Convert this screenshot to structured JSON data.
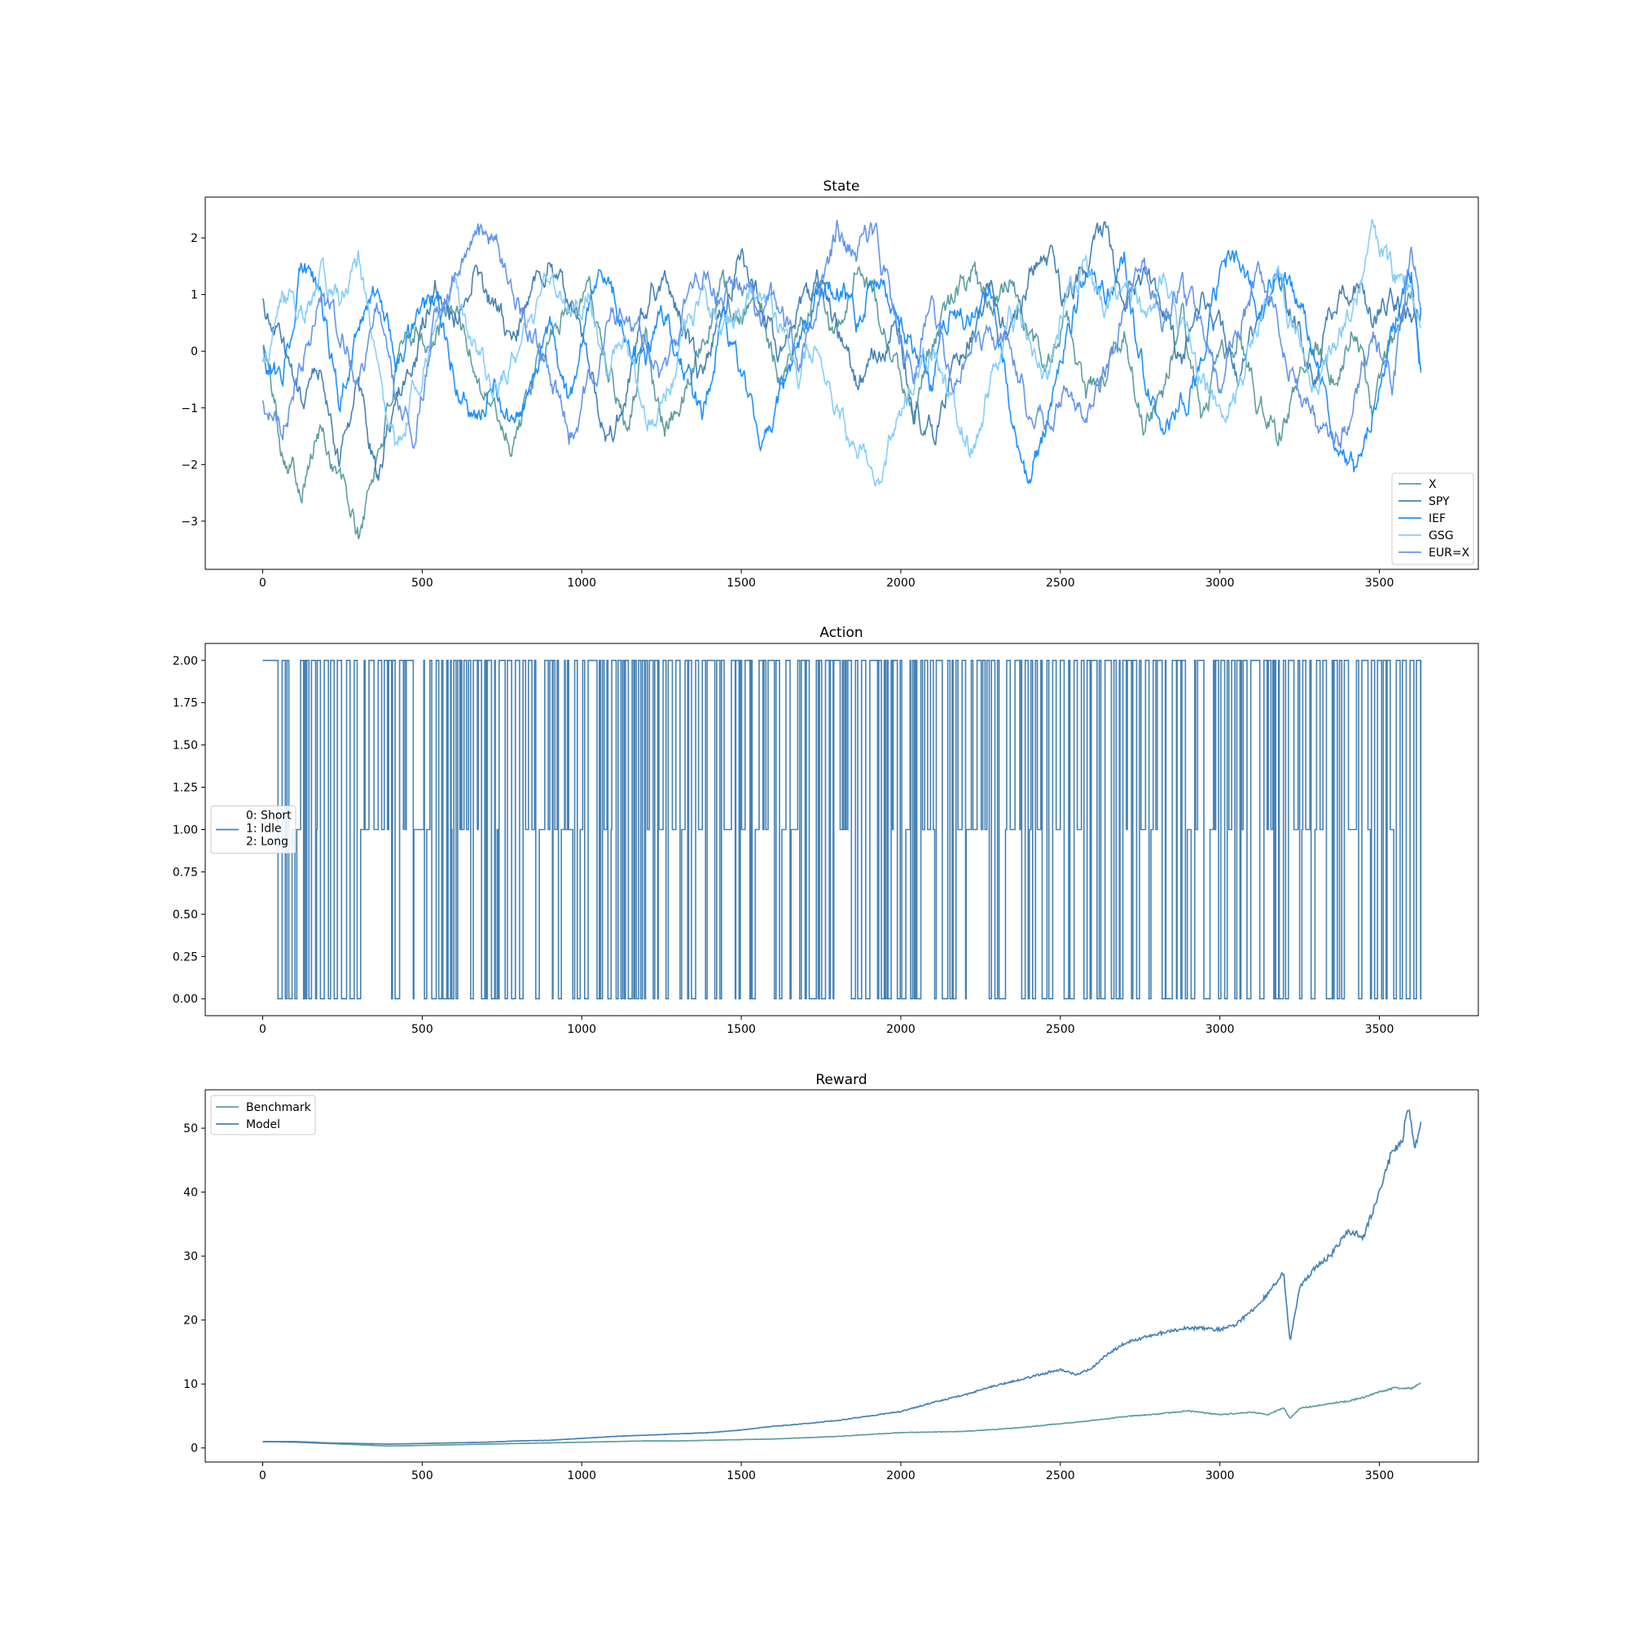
{
  "chart_data": [
    {
      "type": "line",
      "title": "State",
      "xlabel": "",
      "ylabel": "",
      "xlim": [
        -180,
        3810
      ],
      "ylim": [
        -3.85,
        2.72
      ],
      "xticks": [
        0,
        500,
        1000,
        1500,
        2000,
        2500,
        3000,
        3500
      ],
      "yticks": [
        2,
        1,
        0,
        -1,
        -2,
        -3
      ],
      "legend_position": "lower-right",
      "grid": false,
      "x_range": [
        0,
        3630
      ],
      "series": [
        {
          "name": "X",
          "color": "#5F9EA0",
          "x": [
            0,
            60,
            120,
            180,
            240,
            300,
            360,
            420,
            480,
            540,
            600,
            660,
            720,
            780,
            840,
            900,
            960,
            1020,
            1080,
            1140,
            1200,
            1260,
            1320,
            1380,
            1440,
            1500,
            1560,
            1620,
            1680,
            1740,
            1800,
            1860,
            1920,
            1980,
            2040,
            2100,
            2160,
            2220,
            2280,
            2340,
            2400,
            2460,
            2520,
            2580,
            2640,
            2700,
            2760,
            2820,
            2880,
            2940,
            3000,
            3060,
            3120,
            3180,
            3240,
            3300,
            3360,
            3420,
            3480,
            3540,
            3600,
            3630
          ],
          "y": [
            0.2,
            -1.6,
            -2.3,
            -1.4,
            -2.2,
            -3.3,
            -1.8,
            -0.4,
            0.5,
            0.1,
            0.8,
            -0.2,
            -1.0,
            -1.6,
            -0.7,
            0.2,
            0.9,
            1.2,
            -0.1,
            -1.3,
            0.3,
            -1.4,
            -0.9,
            0.4,
            1.2,
            0.6,
            1.0,
            -0.4,
            0.2,
            1.0,
            0.4,
            1.3,
            0.8,
            -0.2,
            -1.1,
            0.2,
            0.9,
            1.4,
            0.6,
            1.3,
            0.2,
            -0.3,
            0.8,
            -0.9,
            -0.4,
            0.5,
            -1.4,
            -0.8,
            0.6,
            -1.2,
            -0.3,
            0.4,
            -0.9,
            -1.5,
            -0.6,
            0.2,
            -0.4,
            0.5,
            -1.1,
            0.1,
            0.9,
            -0.5
          ]
        },
        {
          "name": "SPY",
          "color": "#4682B4",
          "x": [
            0,
            60,
            120,
            180,
            240,
            300,
            360,
            420,
            480,
            540,
            600,
            660,
            720,
            780,
            840,
            900,
            960,
            1020,
            1080,
            1140,
            1200,
            1260,
            1320,
            1380,
            1440,
            1500,
            1560,
            1620,
            1680,
            1740,
            1800,
            1860,
            1920,
            1980,
            2040,
            2100,
            2160,
            2220,
            2280,
            2340,
            2400,
            2460,
            2520,
            2580,
            2640,
            2700,
            2760,
            2820,
            2880,
            2940,
            3000,
            3060,
            3120,
            3180,
            3240,
            3300,
            3360,
            3420,
            3480,
            3540,
            3600,
            3630
          ],
          "y": [
            0.8,
            0.2,
            -0.9,
            -0.3,
            -1.9,
            -0.8,
            -2.2,
            -0.9,
            -0.1,
            1.2,
            0.6,
            1.5,
            0.8,
            0.2,
            0.9,
            1.6,
            0.7,
            -0.4,
            -1.6,
            -0.7,
            0.9,
            1.4,
            0.3,
            -0.6,
            0.8,
            1.7,
            1.0,
            -0.2,
            0.7,
            1.2,
            0.3,
            -0.5,
            -0.1,
            0.6,
            -0.8,
            -1.5,
            -0.4,
            0.3,
            1.1,
            0.5,
            1.3,
            1.7,
            0.8,
            1.4,
            1.9,
            0.9,
            1.3,
            0.6,
            -0.2,
            0.9,
            0.3,
            -0.6,
            0.5,
            1.2,
            0.4,
            -0.4,
            0.9,
            1.3,
            0.5,
            1.0,
            0.3,
            0.8
          ]
        },
        {
          "name": "IEF",
          "color": "#1E90FF",
          "x": [
            0,
            60,
            120,
            180,
            240,
            300,
            360,
            420,
            480,
            540,
            600,
            660,
            720,
            780,
            840,
            900,
            960,
            1020,
            1080,
            1140,
            1200,
            1260,
            1320,
            1380,
            1440,
            1500,
            1560,
            1620,
            1680,
            1740,
            1800,
            1860,
            1920,
            1980,
            2040,
            2100,
            2160,
            2220,
            2280,
            2340,
            2400,
            2460,
            2520,
            2580,
            2640,
            2700,
            2760,
            2820,
            2880,
            2940,
            3000,
            3060,
            3120,
            3180,
            3240,
            3300,
            3360,
            3420,
            3480,
            3540,
            3600,
            3630
          ],
          "y": [
            0.0,
            -0.6,
            1.6,
            1.0,
            -0.8,
            0.4,
            1.3,
            -0.2,
            0.5,
            0.9,
            -0.4,
            -1.2,
            -0.5,
            -1.3,
            -0.6,
            0.2,
            -1.1,
            0.6,
            1.5,
            0.3,
            -0.2,
            0.7,
            -0.3,
            -1.2,
            0.6,
            -0.4,
            -1.9,
            -0.8,
            0.1,
            0.9,
            1.4,
            0.5,
            1.3,
            0.8,
            0.1,
            -0.6,
            0.9,
            0.4,
            1.2,
            -0.8,
            -2.3,
            -1.2,
            0.4,
            1.3,
            0.9,
            1.6,
            -0.3,
            -1.6,
            -1.0,
            -0.2,
            1.3,
            1.7,
            0.4,
            1.6,
            1.1,
            -0.2,
            -1.4,
            -2.1,
            -0.9,
            0.4,
            1.3,
            -0.5
          ]
        },
        {
          "name": "GSG",
          "color": "#87CEFA",
          "x": [
            0,
            60,
            120,
            180,
            240,
            300,
            360,
            420,
            480,
            540,
            600,
            660,
            720,
            780,
            840,
            900,
            960,
            1020,
            1080,
            1140,
            1200,
            1260,
            1320,
            1380,
            1440,
            1500,
            1560,
            1620,
            1680,
            1740,
            1800,
            1860,
            1920,
            1980,
            2040,
            2100,
            2160,
            2220,
            2280,
            2340,
            2400,
            2460,
            2520,
            2580,
            2640,
            2700,
            2760,
            2820,
            2880,
            2940,
            3000,
            3060,
            3120,
            3180,
            3240,
            3300,
            3360,
            3420,
            3480,
            3540,
            3600,
            3630
          ],
          "y": [
            -0.3,
            1.0,
            0.6,
            1.5,
            0.9,
            1.6,
            -0.2,
            -1.8,
            -0.5,
            0.4,
            1.0,
            0.1,
            -0.8,
            -0.2,
            0.6,
            1.2,
            0.5,
            1.0,
            -0.3,
            0.4,
            -1.3,
            -0.7,
            0.2,
            0.9,
            0.3,
            0.8,
            1.1,
            0.4,
            -0.5,
            0.1,
            -0.8,
            -1.8,
            -2.3,
            -1.4,
            -0.5,
            0.2,
            -1.0,
            -1.7,
            -0.6,
            0.8,
            0.2,
            -0.5,
            0.9,
            1.6,
            0.8,
            1.3,
            0.6,
            1.2,
            0.4,
            -0.4,
            -1.3,
            -0.6,
            0.5,
            1.4,
            0.3,
            -0.8,
            0.2,
            0.9,
            1.9,
            1.3,
            1.0,
            0.6
          ]
        },
        {
          "name": "EUR=X",
          "color": "#6495ED",
          "x": [
            0,
            60,
            120,
            180,
            240,
            300,
            360,
            420,
            480,
            540,
            600,
            660,
            720,
            780,
            840,
            900,
            960,
            1020,
            1080,
            1140,
            1200,
            1260,
            1320,
            1380,
            1440,
            1500,
            1560,
            1620,
            1680,
            1740,
            1800,
            1860,
            1920,
            1980,
            2040,
            2100,
            2160,
            2220,
            2280,
            2340,
            2400,
            2460,
            2520,
            2580,
            2640,
            2700,
            2760,
            2820,
            2880,
            2940,
            3000,
            3060,
            3120,
            3180,
            3240,
            3300,
            3360,
            3420,
            3480,
            3540,
            3600,
            3630
          ],
          "y": [
            -0.8,
            -1.4,
            -0.2,
            0.9,
            0.3,
            -0.4,
            0.8,
            -0.9,
            -1.3,
            0.6,
            1.4,
            1.9,
            2.1,
            1.2,
            0.3,
            -0.4,
            -1.5,
            -0.6,
            0.4,
            0.9,
            0.2,
            -0.5,
            0.6,
            1.3,
            0.7,
            1.2,
            0.5,
            0.9,
            -0.2,
            0.7,
            2.1,
            1.8,
            2.0,
            0.6,
            -0.2,
            0.8,
            -0.7,
            -0.2,
            0.5,
            0.2,
            -0.9,
            -1.3,
            -0.7,
            -1.2,
            -0.3,
            0.8,
            1.5,
            0.6,
            1.2,
            0.3,
            -0.6,
            0.4,
            1.2,
            0.5,
            -0.5,
            -1.3,
            -1.9,
            -0.8,
            0.2,
            -0.5,
            1.5,
            0.6
          ]
        }
      ]
    },
    {
      "type": "line",
      "title": "Action",
      "xlabel": "",
      "ylabel": "",
      "xlim": [
        -180,
        3810
      ],
      "ylim": [
        -0.1,
        2.1
      ],
      "xticks": [
        0,
        500,
        1000,
        1500,
        2000,
        2500,
        3000,
        3500
      ],
      "yticks": [
        2.0,
        1.75,
        1.5,
        1.25,
        1.0,
        0.75,
        0.5,
        0.25,
        0.0
      ],
      "ytick_labels": [
        "2.00",
        "1.75",
        "1.50",
        "1.25",
        "1.00",
        "0.75",
        "0.50",
        "0.25",
        "0.00"
      ],
      "legend_position": "center-left",
      "grid": false,
      "series": [
        {
          "name": "0: Short\n1: Idle\n2: Long",
          "legend_lines": [
            "0: Short",
            "1: Idle",
            "2: Long"
          ],
          "color": "#4682B4",
          "values": "discrete actions in {0, 1, 2}, one per step for steps 0–3630, switching frequently; mostly 2 (Long) with frequent drops to 0 (Short) and 1 (Idle)"
        }
      ]
    },
    {
      "type": "line",
      "title": "Reward",
      "xlabel": "",
      "ylabel": "",
      "xlim": [
        -180,
        3810
      ],
      "ylim": [
        -2.2,
        56.0
      ],
      "xticks": [
        0,
        500,
        1000,
        1500,
        2000,
        2500,
        3000,
        3500
      ],
      "yticks": [
        50,
        40,
        30,
        20,
        10,
        0
      ],
      "legend_position": "upper-left",
      "grid": false,
      "series": [
        {
          "name": "Benchmark",
          "color": "#5F9EA0",
          "x": [
            0,
            100,
            200,
            300,
            400,
            500,
            600,
            700,
            800,
            900,
            1000,
            1100,
            1200,
            1300,
            1400,
            1500,
            1600,
            1700,
            1800,
            1900,
            2000,
            2100,
            2200,
            2300,
            2400,
            2500,
            2600,
            2700,
            2800,
            2900,
            3000,
            3100,
            3150,
            3200,
            3220,
            3250,
            3300,
            3350,
            3400,
            3450,
            3500,
            3550,
            3600,
            3630
          ],
          "y": [
            1.0,
            0.9,
            0.7,
            0.5,
            0.3,
            0.4,
            0.5,
            0.6,
            0.7,
            0.8,
            0.9,
            1.0,
            1.1,
            1.1,
            1.2,
            1.3,
            1.4,
            1.6,
            1.8,
            2.1,
            2.4,
            2.5,
            2.6,
            2.9,
            3.3,
            3.8,
            4.3,
            4.9,
            5.3,
            5.8,
            5.2,
            5.6,
            5.2,
            6.3,
            4.6,
            6.2,
            6.6,
            7.0,
            7.3,
            7.9,
            8.8,
            9.4,
            9.3,
            10.2
          ]
        },
        {
          "name": "Model",
          "color": "#4682B4",
          "x": [
            0,
            100,
            200,
            300,
            400,
            500,
            600,
            700,
            800,
            900,
            1000,
            1100,
            1200,
            1300,
            1400,
            1500,
            1600,
            1700,
            1800,
            1900,
            2000,
            2100,
            2200,
            2300,
            2400,
            2500,
            2550,
            2600,
            2650,
            2700,
            2800,
            2900,
            3000,
            3050,
            3100,
            3150,
            3200,
            3220,
            3250,
            3300,
            3350,
            3400,
            3450,
            3500,
            3540,
            3570,
            3590,
            3610,
            3630
          ],
          "y": [
            1.0,
            1.0,
            0.8,
            0.7,
            0.6,
            0.7,
            0.8,
            0.9,
            1.1,
            1.2,
            1.5,
            1.8,
            2.0,
            2.2,
            2.4,
            2.8,
            3.4,
            3.8,
            4.3,
            5.0,
            5.7,
            7.1,
            8.3,
            9.8,
            11.0,
            12.3,
            11.4,
            12.5,
            14.8,
            16.3,
            17.8,
            18.8,
            18.5,
            19.3,
            21.5,
            24.0,
            27.5,
            16.5,
            25.0,
            28.3,
            30.2,
            34.0,
            33.0,
            40.0,
            46.5,
            47.5,
            53.5,
            47.0,
            50.3
          ]
        }
      ]
    }
  ]
}
